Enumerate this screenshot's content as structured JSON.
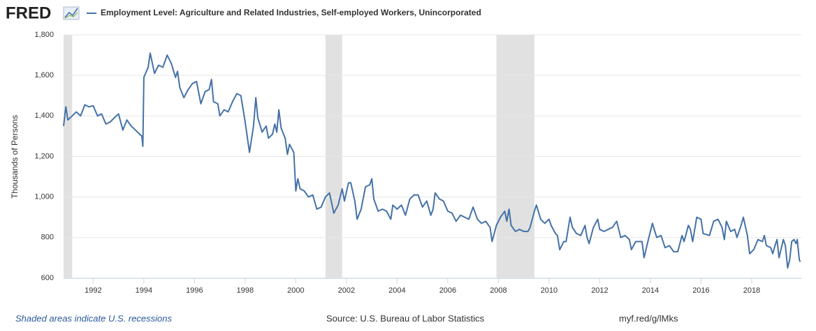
{
  "chart_data": {
    "type": "line",
    "logo": "FRED",
    "title": "Employment Level: Agriculture and Related Industries, Self-employed Workers, Unincorporated",
    "ylabel": "Thousands of Persons",
    "note": "Shaded areas indicate U.S. recessions",
    "source": "Source: U.S. Bureau of Labor Statistics",
    "link": "myf.red/g/lMks",
    "xlim": [
      1990.83,
      2019.96
    ],
    "ylim": [
      600,
      1800
    ],
    "xticks": [
      1992,
      1994,
      1996,
      1998,
      2000,
      2002,
      2004,
      2006,
      2008,
      2010,
      2012,
      2014,
      2016,
      2018
    ],
    "yticks": [
      600,
      800,
      {
        "value": 1000,
        "label": "1,000"
      },
      {
        "value": 1200,
        "label": "1,200"
      },
      {
        "value": 1400,
        "label": "1,400"
      },
      {
        "value": 1600,
        "label": "1,600"
      },
      {
        "value": 1800,
        "label": "1,800"
      }
    ],
    "grid": true,
    "recessions": [
      [
        1990.83,
        1991.17
      ],
      [
        2001.17,
        2001.83
      ],
      [
        2007.92,
        2009.42
      ]
    ],
    "recession_color": "#e1e1e1",
    "x": [
      1990.83,
      1990.92,
      1991.0,
      1991.17,
      1991.33,
      1991.5,
      1991.67,
      1991.83,
      1992.0,
      1992.17,
      1992.33,
      1992.5,
      1992.67,
      1992.83,
      1993.0,
      1993.17,
      1993.33,
      1993.5,
      1993.67,
      1993.83,
      1993.92,
      1993.96,
      1994.0,
      1994.17,
      1994.25,
      1994.42,
      1994.58,
      1994.75,
      1994.92,
      1995.08,
      1995.25,
      1995.33,
      1995.42,
      1995.58,
      1995.75,
      1995.92,
      1996.08,
      1996.25,
      1996.42,
      1996.58,
      1996.67,
      1996.75,
      1996.92,
      1997.0,
      1997.17,
      1997.33,
      1997.5,
      1997.67,
      1997.83,
      1998.0,
      1998.17,
      1998.33,
      1998.42,
      1998.5,
      1998.67,
      1998.83,
      1998.92,
      1999.08,
      1999.17,
      1999.25,
      1999.33,
      1999.42,
      1999.58,
      1999.67,
      1999.75,
      1999.92,
      2000.0,
      2000.08,
      2000.17,
      2000.33,
      2000.5,
      2000.67,
      2000.83,
      2001.0,
      2001.17,
      2001.33,
      2001.5,
      2001.67,
      2001.83,
      2001.92,
      2002.08,
      2002.17,
      2002.33,
      2002.42,
      2002.58,
      2002.75,
      2002.92,
      2003.0,
      2003.08,
      2003.25,
      2003.42,
      2003.58,
      2003.75,
      2003.83,
      2004.0,
      2004.17,
      2004.33,
      2004.5,
      2004.67,
      2004.83,
      2005.0,
      2005.17,
      2005.33,
      2005.42,
      2005.5,
      2005.67,
      2005.83,
      2006.0,
      2006.17,
      2006.33,
      2006.5,
      2006.67,
      2006.83,
      2007.0,
      2007.17,
      2007.33,
      2007.5,
      2007.67,
      2007.75,
      2007.92,
      2008.08,
      2008.25,
      2008.33,
      2008.42,
      2008.5,
      2008.67,
      2008.83,
      2009.0,
      2009.17,
      2009.25,
      2009.42,
      2009.5,
      2009.67,
      2009.83,
      2010.0,
      2010.08,
      2010.25,
      2010.33,
      2010.42,
      2010.58,
      2010.67,
      2010.83,
      2010.92,
      2011.08,
      2011.25,
      2011.42,
      2011.5,
      2011.58,
      2011.75,
      2011.92,
      2012.0,
      2012.17,
      2012.33,
      2012.5,
      2012.67,
      2012.83,
      2013.0,
      2013.17,
      2013.25,
      2013.42,
      2013.5,
      2013.67,
      2013.75,
      2013.92,
      2014.08,
      2014.25,
      2014.42,
      2014.58,
      2014.75,
      2014.92,
      2015.08,
      2015.25,
      2015.33,
      2015.5,
      2015.58,
      2015.67,
      2015.83,
      2016.0,
      2016.08,
      2016.33,
      2016.5,
      2016.67,
      2016.83,
      2016.92,
      2017.0,
      2017.17,
      2017.33,
      2017.42,
      2017.58,
      2017.67,
      2017.83,
      2017.92,
      2018.08,
      2018.25,
      2018.42,
      2018.5,
      2018.58,
      2018.75,
      2018.83,
      2018.92,
      2019.0,
      2019.08,
      2019.25,
      2019.33,
      2019.42,
      2019.5,
      2019.58,
      2019.67,
      2019.75,
      2019.8,
      2019.88,
      2019.92
    ],
    "series": [
      {
        "name": "Employment Level: Agriculture and Related Industries, Self-employed Workers, Unincorporated",
        "color": "#4572a7",
        "values": [
          1350,
          1445,
          1380,
          1400,
          1420,
          1400,
          1455,
          1445,
          1450,
          1400,
          1410,
          1360,
          1370,
          1390,
          1410,
          1330,
          1380,
          1350,
          1330,
          1310,
          1300,
          1250,
          1590,
          1640,
          1710,
          1610,
          1650,
          1640,
          1700,
          1660,
          1590,
          1620,
          1540,
          1490,
          1530,
          1560,
          1570,
          1460,
          1520,
          1530,
          1580,
          1470,
          1460,
          1400,
          1430,
          1420,
          1470,
          1510,
          1500,
          1370,
          1220,
          1350,
          1490,
          1390,
          1320,
          1350,
          1290,
          1310,
          1360,
          1320,
          1430,
          1340,
          1290,
          1210,
          1260,
          1220,
          1030,
          1090,
          1040,
          1030,
          1000,
          1010,
          940,
          950,
          1000,
          1020,
          920,
          960,
          1040,
          980,
          1070,
          1070,
          980,
          890,
          940,
          1050,
          1060,
          1090,
          990,
          930,
          940,
          930,
          890,
          960,
          940,
          960,
          910,
          990,
          1010,
          1010,
          950,
          980,
          910,
          940,
          1020,
          990,
          980,
          930,
          920,
          880,
          910,
          900,
          890,
          950,
          890,
          870,
          880,
          850,
          780,
          860,
          900,
          930,
          880,
          940,
          860,
          830,
          840,
          830,
          830,
          850,
          930,
          960,
          890,
          870,
          890,
          860,
          820,
          810,
          740,
          780,
          780,
          900,
          850,
          820,
          810,
          860,
          800,
          770,
          850,
          890,
          840,
          830,
          840,
          850,
          880,
          800,
          810,
          790,
          740,
          780,
          780,
          780,
          700,
          790,
          870,
          800,
          810,
          750,
          760,
          730,
          730,
          810,
          780,
          860,
          840,
          780,
          900,
          890,
          820,
          810,
          880,
          890,
          850,
          790,
          880,
          830,
          840,
          800,
          860,
          900,
          810,
          720,
          740,
          790,
          780,
          810,
          760,
          750,
          720,
          760,
          790,
          700,
          790,
          760,
          650,
          690,
          780,
          790,
          770,
          790,
          690,
          680
        ]
      }
    ]
  }
}
